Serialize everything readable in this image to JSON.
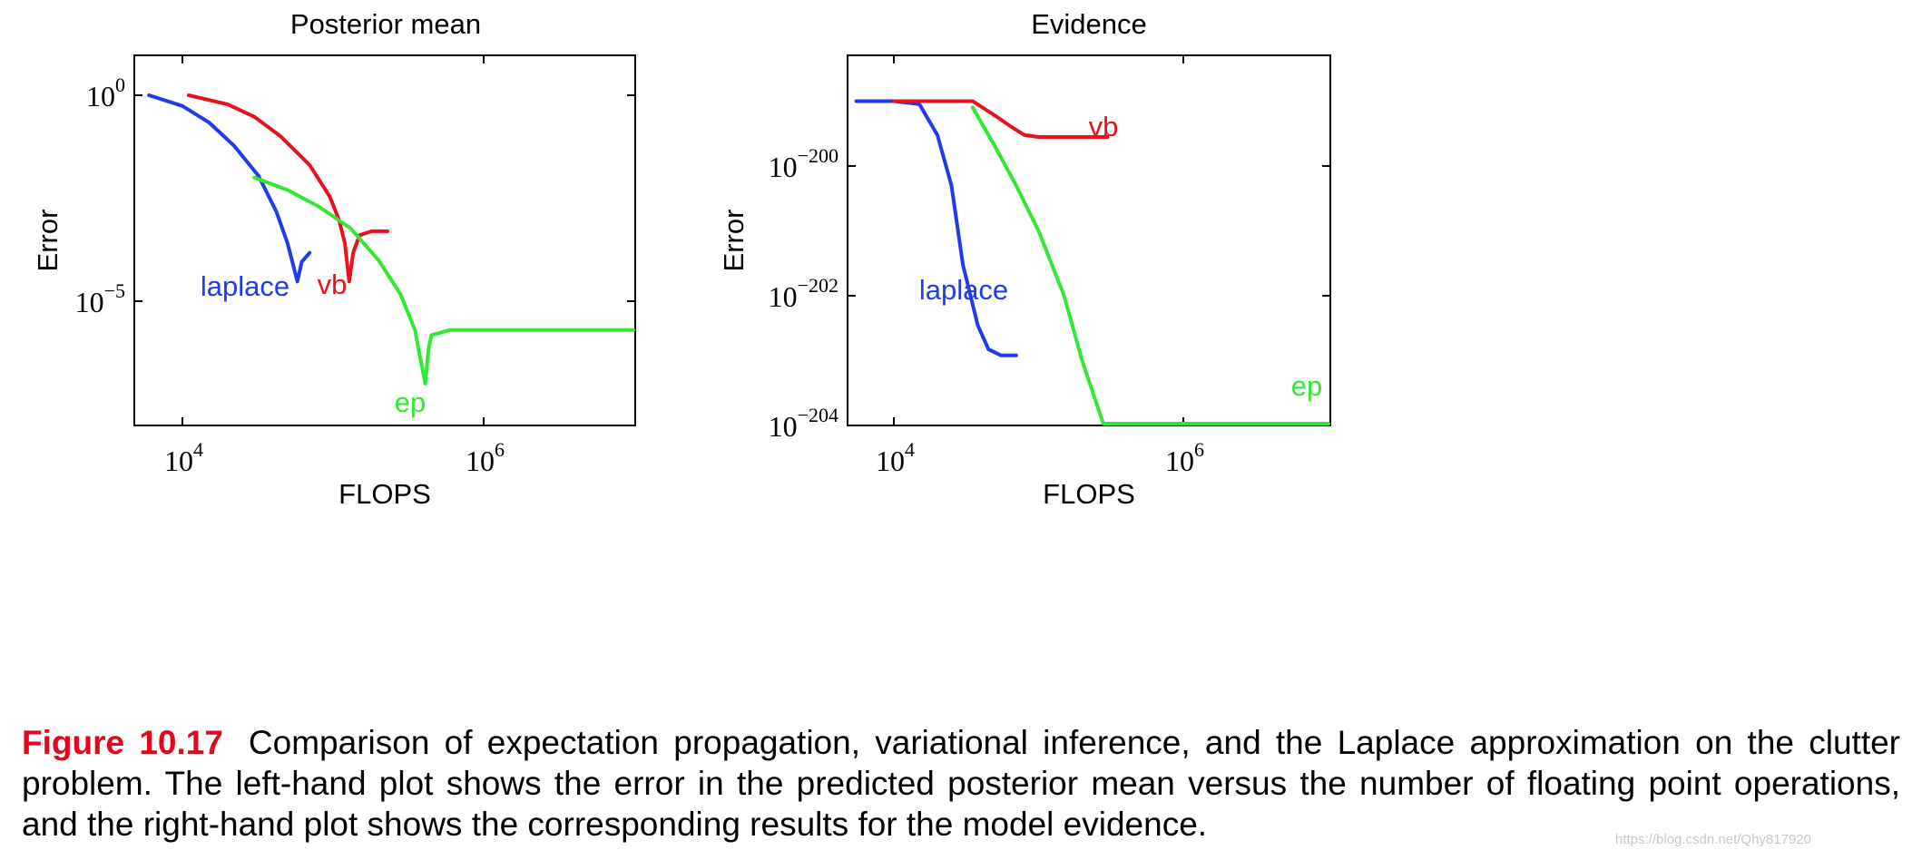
{
  "colors": {
    "laplace": "#1f3ce6",
    "vb": "#e8121c",
    "ep": "#33e833",
    "caption_label": "#e3061d"
  },
  "chart_data": [
    {
      "type": "line",
      "title": "Posterior mean",
      "xlabel": "FLOPS",
      "ylabel": "Error",
      "x_scale": "log",
      "y_scale": "log",
      "xlim": [
        5000,
        100000000
      ],
      "ylim": [
        1e-07,
        10
      ],
      "x_ticks": [
        {
          "exp": "4",
          "value": 10000
        },
        {
          "exp": "6",
          "value": 1000000
        }
      ],
      "y_ticks": [
        {
          "exp": "0",
          "value": 1
        },
        {
          "exp": "−5",
          "value": 1e-05
        }
      ],
      "series": [
        {
          "name": "laplace",
          "color_key": "laplace",
          "x": [
            6000,
            10000,
            15000,
            22000,
            32000,
            42000,
            50000,
            58000,
            62000,
            70000
          ],
          "y": [
            1,
            0.55,
            0.22,
            0.06,
            0.011,
            0.0015,
            0.00025,
            3e-05,
            9e-05,
            0.00015
          ]
        },
        {
          "name": "vb",
          "color_key": "vb",
          "x": [
            11000,
            20000,
            30000,
            45000,
            70000,
            95000,
            110000,
            120000,
            128000,
            136000,
            150000,
            180000,
            230000
          ],
          "y": [
            1,
            0.6,
            0.3,
            0.1,
            0.02,
            0.0035,
            0.0009,
            0.00025,
            3e-05,
            0.00015,
            0.0004,
            0.0005,
            0.0005
          ],
          "label_offset": [
            -18,
            58
          ]
        },
        {
          "name": "ep",
          "color_key": "ep",
          "x": [
            30000,
            50000,
            80000,
            130000,
            200000,
            280000,
            350000,
            380000,
            410000,
            430000,
            450000,
            600000,
            1000000,
            10000000,
            50000000
          ],
          "y": [
            0.01,
            0.005,
            0.002,
            0.0006,
            0.0001,
            1.5e-05,
            2e-06,
            4e-07,
            1e-07,
            7e-07,
            1.5e-06,
            2e-06,
            2e-06,
            2e-06,
            2e-06
          ],
          "label_offset": [
            -20,
            70
          ]
        }
      ],
      "label_anchors": {
        "laplace": [
          270,
          316
        ],
        "vb": [
          366,
          314
        ],
        "ep": [
          452,
          444
        ]
      }
    },
    {
      "type": "line",
      "title": "Evidence",
      "xlabel": "FLOPS",
      "ylabel": "Error",
      "x_scale": "log",
      "y_scale": "log",
      "xlim": [
        5000,
        100000000
      ],
      "ylim": [
        1e-204,
        1e-199
      ],
      "x_ticks": [
        {
          "exp": "4",
          "value": 10000
        },
        {
          "exp": "6",
          "value": 1000000
        }
      ],
      "y_ticks": [
        {
          "exp": "−200",
          "value": 1e-200
        },
        {
          "exp": "−202",
          "value": 1e-202
        },
        {
          "exp": "−204",
          "value": 1e-204
        }
      ],
      "series": [
        {
          "name": "laplace",
          "color_key": "laplace",
          "x": [
            5500,
            10000,
            15000,
            20000,
            25000,
            30000,
            38000,
            45000,
            55000,
            70000
          ],
          "y": [
            1e-199,
            1e-199,
            9e-200,
            3e-200,
            5e-201,
            3e-202,
            3.5e-203,
            1.5e-203,
            1.2e-203,
            1.2e-203
          ]
        },
        {
          "name": "vb",
          "color_key": "vb",
          "x": [
            10000,
            20000,
            35000,
            50000,
            65000,
            80000,
            100000,
            150000,
            200000,
            300000
          ],
          "y": [
            1e-199,
            1e-199,
            1e-199,
            6e-200,
            4e-200,
            3e-200,
            2.8e-200,
            2.8e-200,
            2.8e-200,
            2.8e-200
          ]
        },
        {
          "name": "ep",
          "color_key": "ep",
          "x": [
            35000,
            50000,
            70000,
            100000,
            150000,
            200000,
            280000,
            320000,
            350000,
            400000,
            600000,
            1000000,
            10000000,
            50000000
          ],
          "y": [
            8e-200,
            2e-200,
            5e-201,
            1e-201,
            1e-202,
            1e-203,
            1e-204,
            7e-205,
            6e-205,
            6e-205,
            6e-205,
            6e-205,
            6e-205,
            6e-205
          ]
        }
      ],
      "label_anchors": {
        "laplace": [
          1062,
          320
        ],
        "vb": [
          1216,
          140
        ],
        "ep": [
          1440,
          426
        ]
      }
    }
  ],
  "caption": {
    "label": "Figure 10.17",
    "text": "Comparison of expectation propagation, variational inference, and the Laplace approximation on the clutter problem. The left-hand plot shows the error in the predicted posterior mean versus the number of floating point operations, and the right-hand plot shows the corresponding results for the model evidence."
  },
  "watermark": "https://blog.csdn.net/Qhy817920"
}
